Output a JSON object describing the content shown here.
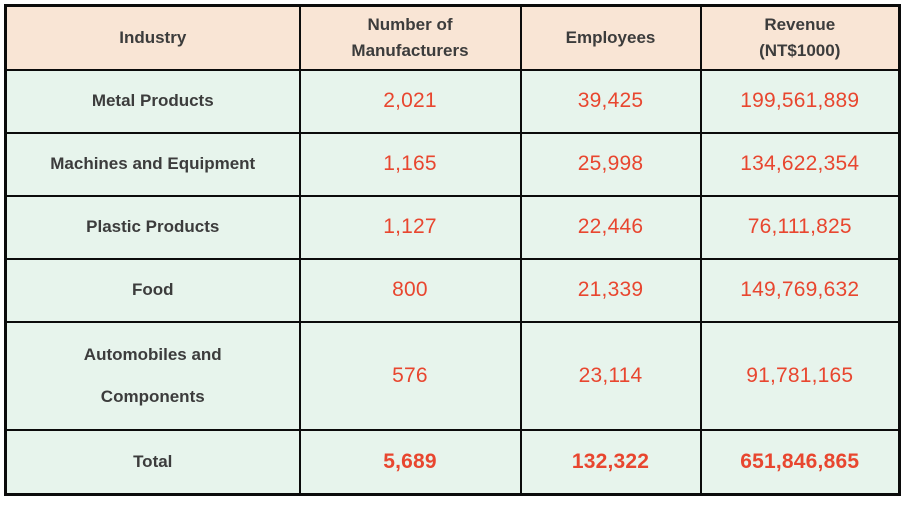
{
  "colors": {
    "header_bg": "#F9E5D5",
    "body_bg": "#E7F4EC",
    "border": "#0B0B0B",
    "label_text": "#3C3C3C",
    "value_text": "#E8462F"
  },
  "table": {
    "columns": [
      "Industry",
      "Number of\nManufacturers",
      "Employees",
      "Revenue\n(NT$1000)"
    ],
    "rows": [
      {
        "industry": "Metal Products",
        "manufacturers": "2,021",
        "employees": "39,425",
        "revenue": "199,561,889"
      },
      {
        "industry": "Machines and Equipment",
        "manufacturers": "1,165",
        "employees": "25,998",
        "revenue": "134,622,354"
      },
      {
        "industry": "Plastic Products",
        "manufacturers": "1,127",
        "employees": "22,446",
        "revenue": "76,111,825"
      },
      {
        "industry": "Food",
        "manufacturers": "800",
        "employees": "21,339",
        "revenue": "149,769,632"
      },
      {
        "industry": "Automobiles and\nComponents",
        "manufacturers": "576",
        "employees": "23,114",
        "revenue": "91,781,165"
      }
    ],
    "total_row": {
      "industry": "Total",
      "manufacturers": "5,689",
      "employees": "132,322",
      "revenue": "651,846,865"
    }
  },
  "chart_data": {
    "type": "table",
    "title": "",
    "columns": [
      "Industry",
      "Number of Manufacturers",
      "Employees",
      "Revenue (NT$1000)"
    ],
    "rows": [
      [
        "Metal Products",
        2021,
        39425,
        199561889
      ],
      [
        "Machines and Equipment",
        1165,
        25998,
        134622354
      ],
      [
        "Plastic Products",
        1127,
        22446,
        76111825
      ],
      [
        "Food",
        800,
        21339,
        149769632
      ],
      [
        "Automobiles and Components",
        576,
        23114,
        91781165
      ],
      [
        "Total",
        5689,
        132322,
        651846865
      ]
    ]
  }
}
